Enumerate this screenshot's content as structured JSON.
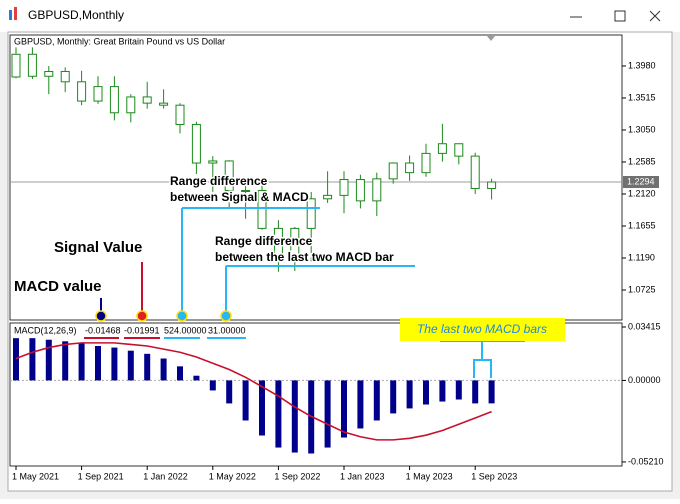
{
  "window_title": "GBPUSD,Monthly",
  "chart_data": [
    {
      "type": "candlestick",
      "title": "GBPUSD, Monthly:  Great Britain Pound vs US Dollar",
      "color": "#1a8a1a",
      "open": [
        1.382,
        1.415,
        1.383,
        1.39,
        1.375,
        1.347,
        1.368,
        1.33,
        1.353,
        1.344,
        1.341,
        1.313,
        1.257,
        1.26,
        1.217,
        1.217,
        1.162,
        1.117,
        1.162,
        1.205,
        1.21,
        1.233,
        1.202,
        1.234,
        1.257,
        1.243,
        1.271,
        1.285,
        1.267,
        1.22
      ],
      "high": [
        1.425,
        1.425,
        1.398,
        1.396,
        1.391,
        1.383,
        1.383,
        1.357,
        1.375,
        1.364,
        1.344,
        1.317,
        1.267,
        1.261,
        1.225,
        1.229,
        1.174,
        1.164,
        1.215,
        1.245,
        1.245,
        1.24,
        1.243,
        1.258,
        1.268,
        1.285,
        1.314,
        1.284,
        1.272,
        1.234
      ],
      "low": [
        1.38,
        1.379,
        1.357,
        1.36,
        1.341,
        1.343,
        1.319,
        1.316,
        1.336,
        1.336,
        1.3,
        1.241,
        1.215,
        1.193,
        1.176,
        1.16,
        1.099,
        1.1,
        1.114,
        1.199,
        1.184,
        1.191,
        1.18,
        1.227,
        1.231,
        1.237,
        1.259,
        1.255,
        1.212,
        1.204
      ],
      "close": [
        1.415,
        1.383,
        1.39,
        1.375,
        1.347,
        1.368,
        1.33,
        1.353,
        1.344,
        1.341,
        1.313,
        1.257,
        1.26,
        1.217,
        1.217,
        1.162,
        1.117,
        1.162,
        1.205,
        1.21,
        1.233,
        1.202,
        1.234,
        1.257,
        1.243,
        1.271,
        1.285,
        1.267,
        1.22,
        1.2294
      ],
      "current_price": 1.2294,
      "ylim": [
        1.0289,
        1.443
      ],
      "yticks": [
        {
          "value": 1.398,
          "label": "1.3980"
        },
        1.3515,
        {
          "value": 1.305,
          "label": "1.3050"
        },
        1.2585,
        {
          "value": 1.212,
          "label": "1.2120"
        },
        1.1655,
        {
          "value": 1.119,
          "label": "1.1190"
        },
        1.0725
      ]
    },
    {
      "type": "macd",
      "title": "MACD(12,26,9)",
      "indicator_values": [
        -0.01468,
        -0.01991,
        {
          "value": 524,
          "label": "524.00000"
        },
        {
          "value": 31,
          "label": "31.00000"
        }
      ],
      "categories": [
        "1 May 2021",
        null,
        null,
        null,
        "1 Sep 2021",
        null,
        null,
        null,
        "1 Jan 2022",
        null,
        null,
        null,
        "1 May 2022",
        null,
        null,
        null,
        "1 Sep 2022",
        null,
        null,
        null,
        "1 Jan 2023",
        null,
        null,
        null,
        "1 May 2023",
        null,
        null,
        null,
        "1 Sep 2023",
        null
      ],
      "series": [
        {
          "name": "MACD",
          "color": "#00008b",
          "values": [
            0.027,
            0.027,
            0.026,
            0.025,
            0.024,
            0.022,
            0.021,
            0.019,
            0.017,
            0.014,
            0.009,
            0.003,
            -0.0064,
            -0.0147,
            -0.0256,
            -0.0352,
            -0.0429,
            -0.0461,
            -0.0467,
            -0.0429,
            -0.0365,
            -0.0307,
            -0.0256,
            -0.0211,
            -0.0179,
            -0.0154,
            -0.0135,
            -0.0122,
            -0.0147,
            -0.01468
          ]
        },
        {
          "name": "Signal",
          "color": "#c8102e",
          "values": [
            0.014,
            0.018,
            0.021,
            0.023,
            0.024,
            0.024,
            0.024,
            0.023,
            0.022,
            0.02,
            0.018,
            0.015,
            0.011,
            0.007,
            0.002,
            -0.004,
            -0.01,
            -0.017,
            -0.023,
            -0.028,
            -0.033,
            -0.036,
            -0.038,
            -0.038,
            -0.037,
            -0.035,
            -0.032,
            -0.028,
            -0.024,
            -0.01991
          ]
        }
      ],
      "ylim": [
        -0.0547,
        0.0367
      ],
      "yticks": [
        0.03415,
        {
          "value": 0,
          "label": "0.00000"
        },
        {
          "value": -0.0521,
          "label": "-0.05210"
        }
      ]
    }
  ],
  "annotations": {
    "range_signal_macd": [
      "Range difference",
      "between Signal & MACD"
    ],
    "range_last_two": [
      "Range difference",
      "between the last two MACD bar"
    ],
    "signal_value": "Signal Value",
    "macd_value": "MACD value",
    "last_two_bars": "The last two MACD bars"
  }
}
